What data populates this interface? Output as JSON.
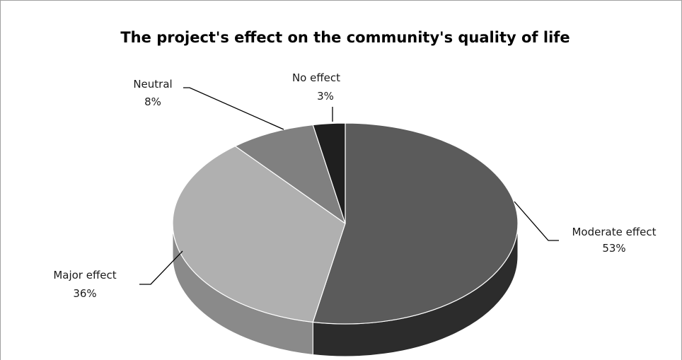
{
  "chart_data": {
    "type": "pie",
    "title": "The project's effect on the community's quality of life",
    "slices": [
      {
        "label": "Moderate effect",
        "value": 53,
        "value_label": "53%",
        "top_color": "#5b5b5b",
        "side_color": "#2c2c2c"
      },
      {
        "label": "Major effect",
        "value": 36,
        "value_label": "36%",
        "top_color": "#b0b0b0",
        "side_color": "#8a8a8a"
      },
      {
        "label": "Neutral",
        "value": 8,
        "value_label": "8%",
        "top_color": "#808080",
        "side_color": "#5e5e5e"
      },
      {
        "label": "No effect",
        "value": 3,
        "value_label": "3%",
        "top_color": "#1f1f1f",
        "side_color": "#111111"
      }
    ],
    "legend": "none",
    "style": "3d-pie"
  }
}
